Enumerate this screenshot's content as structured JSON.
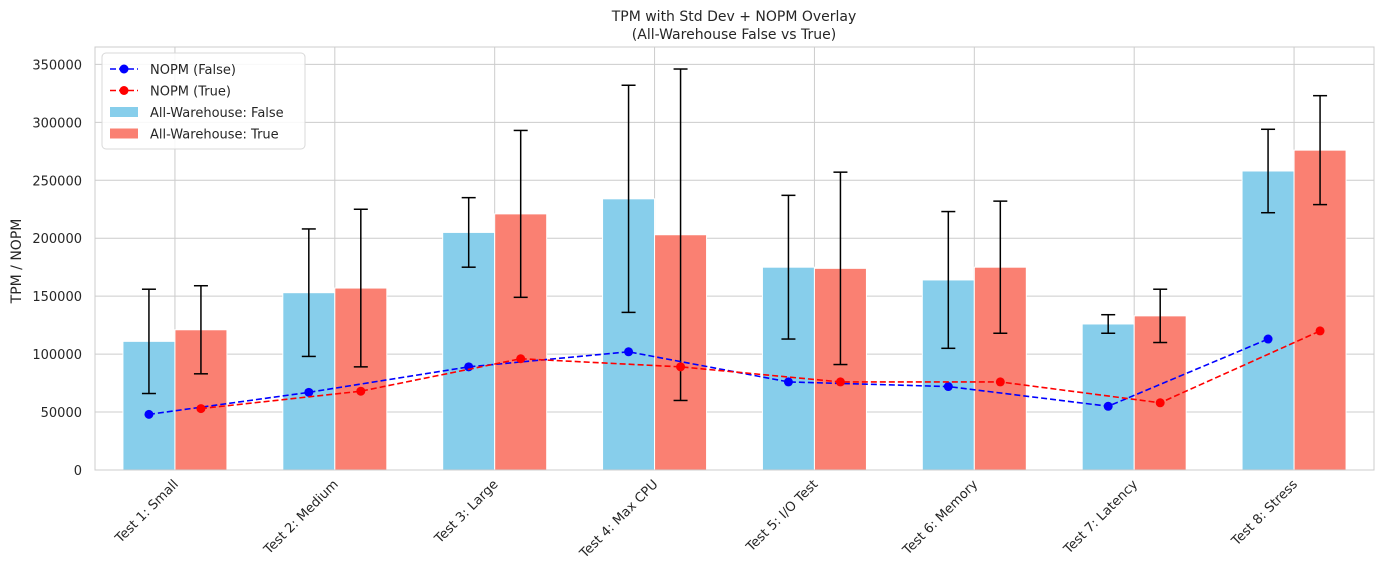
{
  "chart_data": {
    "type": "bar",
    "title": "TPM with Std Dev + NOPM Overlay",
    "subtitle": "(All-Warehouse False vs True)",
    "xlabel": "",
    "ylabel": "TPM / NOPM",
    "ylim": [
      0,
      365000
    ],
    "yticks": [
      0,
      50000,
      100000,
      150000,
      200000,
      250000,
      300000,
      350000
    ],
    "ytick_labels": [
      "0",
      "50000",
      "100000",
      "150000",
      "200000",
      "250000",
      "300000",
      "350000"
    ],
    "grid": true,
    "legend_position": "top-left",
    "categories": [
      "Test 1: Small",
      "Test 2: Medium",
      "Test 3: Large",
      "Test 4: Max CPU",
      "Test 5: I/O Test",
      "Test 6: Memory",
      "Test 7: Latency",
      "Test 8: Stress"
    ],
    "bar_series": [
      {
        "name": "All-Warehouse: False",
        "color": "#87ceeb",
        "values": [
          111000,
          153000,
          205000,
          234000,
          175000,
          164000,
          126000,
          258000
        ],
        "std": [
          45000,
          55000,
          30000,
          98000,
          62000,
          59000,
          8000,
          36000
        ]
      },
      {
        "name": "All-Warehouse: True",
        "color": "#fa8072",
        "values": [
          121000,
          157000,
          221000,
          203000,
          174000,
          175000,
          133000,
          276000
        ],
        "std": [
          38000,
          68000,
          72000,
          143000,
          83000,
          57000,
          23000,
          47000
        ]
      }
    ],
    "line_series": [
      {
        "name": "NOPM (False)",
        "color": "#0000ff",
        "values": [
          48000,
          67000,
          89000,
          102000,
          76000,
          72000,
          55000,
          113000
        ]
      },
      {
        "name": "NOPM (True)",
        "color": "#ff0000",
        "values": [
          53000,
          68000,
          96000,
          89000,
          76000,
          76000,
          58000,
          120000
        ]
      }
    ]
  }
}
